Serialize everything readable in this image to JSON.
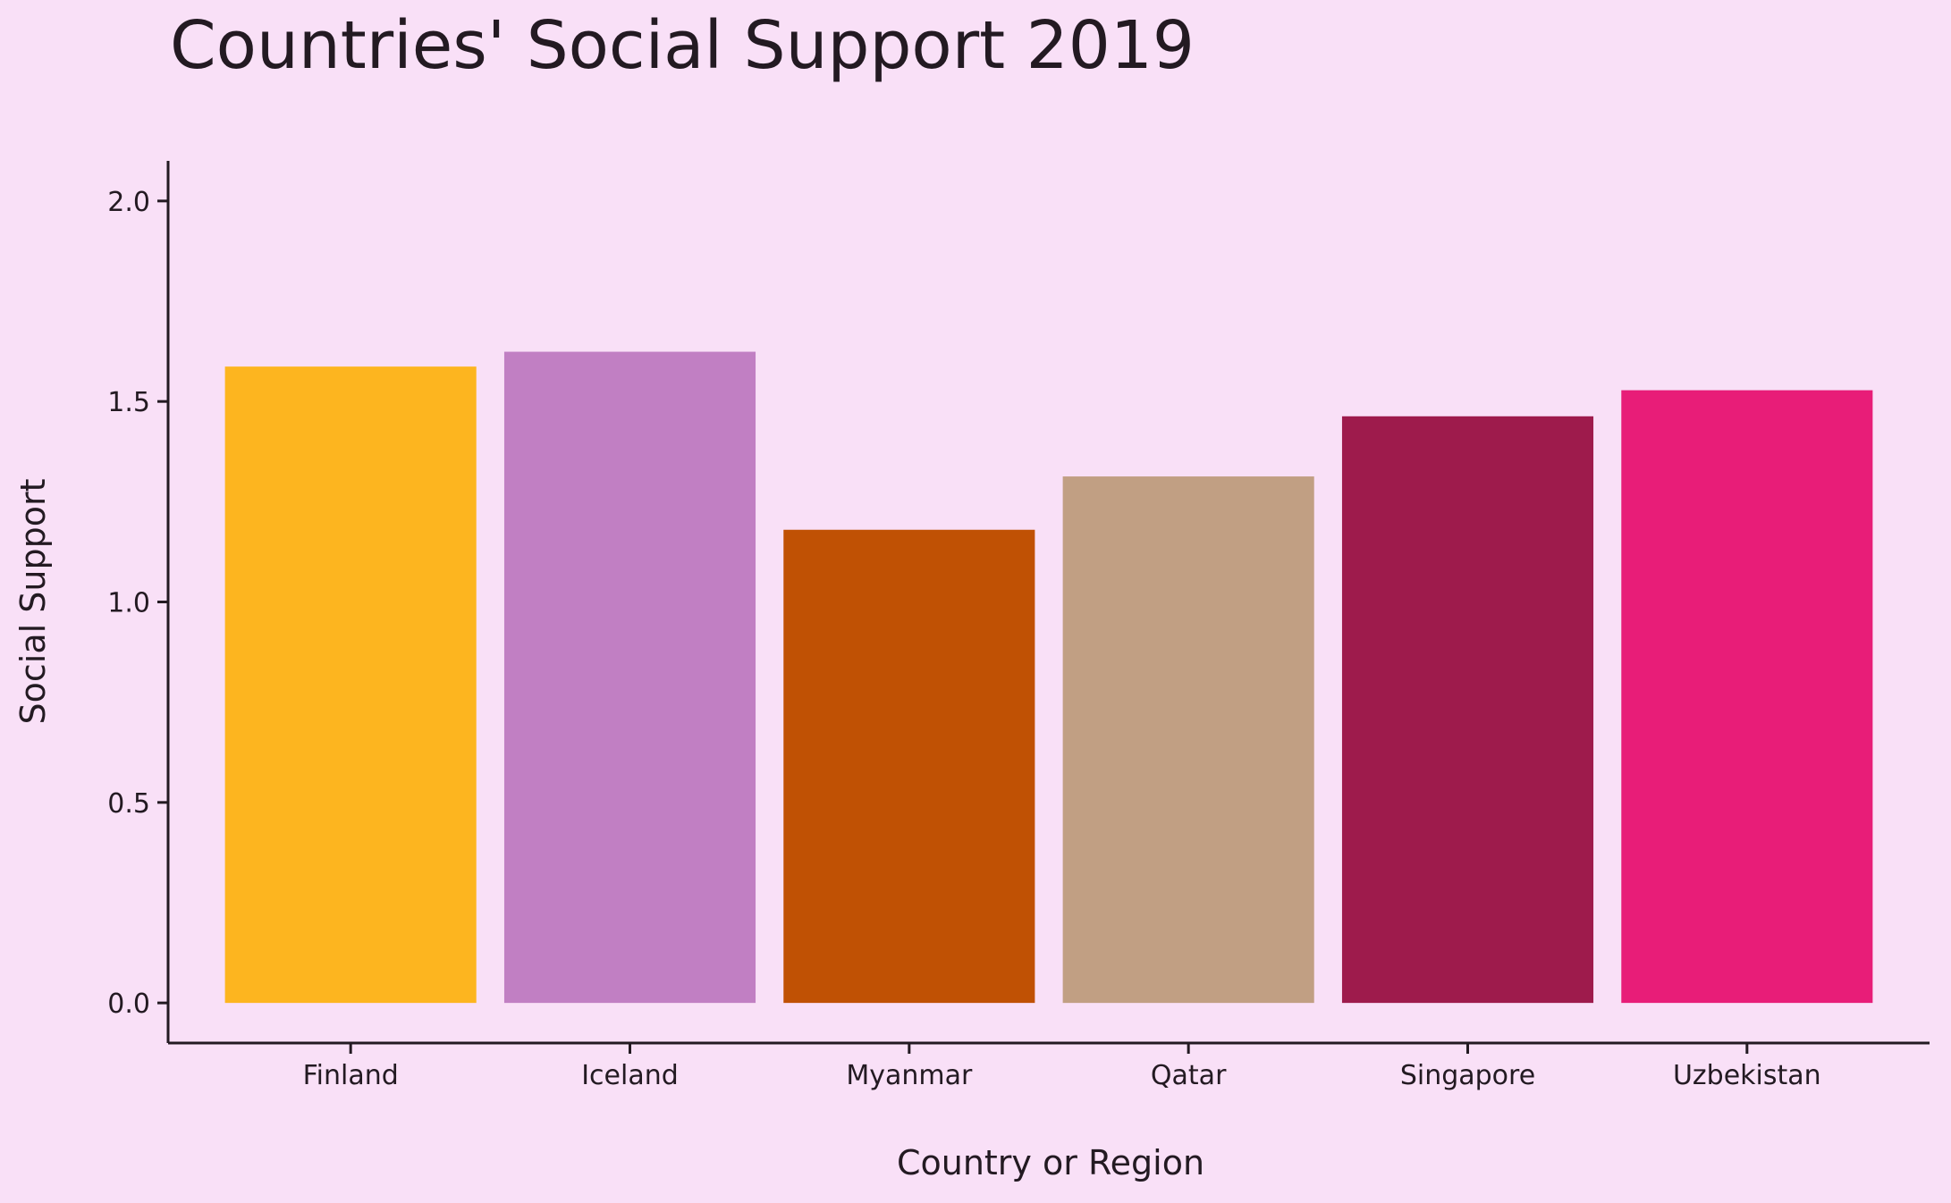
{
  "chart_data": {
    "type": "bar",
    "title": "Countries' Social Support 2019",
    "xlabel": "Country or Region",
    "ylabel": "Social Support",
    "categories": [
      "Finland",
      "Iceland",
      "Myanmar",
      "Qatar",
      "Singapore",
      "Uzbekistan"
    ],
    "values": [
      1.587,
      1.624,
      1.18,
      1.313,
      1.463,
      1.528
    ],
    "colors": [
      "#fdb51f",
      "#c17fc3",
      "#c05104",
      "#c19f83",
      "#9e1b4c",
      "#e81d78"
    ],
    "ylim": [
      -0.1,
      2.1
    ],
    "yticks": [
      0.0,
      0.5,
      1.0,
      1.5,
      2.0
    ],
    "ytick_labels": [
      "0.0",
      "0.5",
      "1.0",
      "1.5",
      "2.0"
    ],
    "grid": false,
    "legend": "none",
    "background": "#f9e0f7",
    "text_color": "#231a22"
  }
}
